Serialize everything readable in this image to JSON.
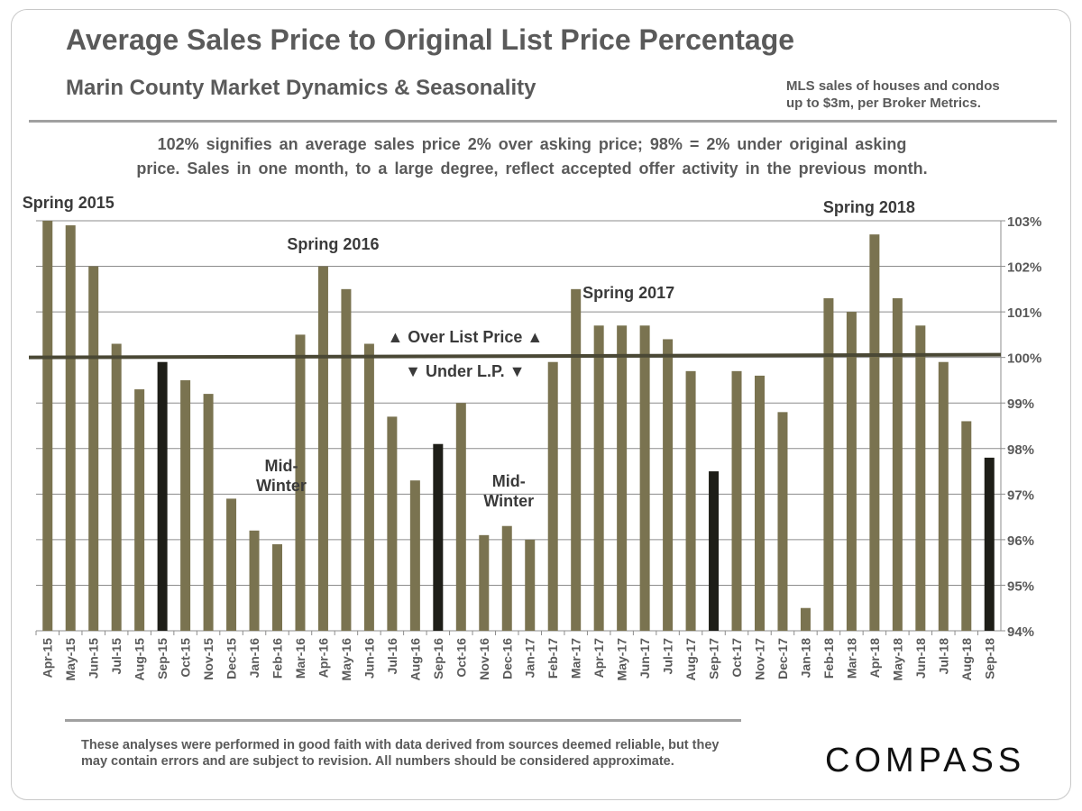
{
  "header": {
    "title": "Average Sales Price to Original List Price Percentage",
    "subtitle": "Marin County Market Dynamics & Seasonality",
    "source_line1": "MLS sales of houses and condos",
    "source_line2": "up to $3m, per Broker Metrics."
  },
  "note": {
    "line1": "102% signifies an average sales price 2% over asking price; 98% = 2% under original asking",
    "line2": "price. Sales in one month, to a large degree, reflect accepted offer activity in the previous month."
  },
  "footer": {
    "disclaimer": "These analyses were performed in good faith with data derived from sources deemed reliable, but they may contain errors and are subject to revision. All numbers should be considered approximate.",
    "logo_text": "COMPASS"
  },
  "colors": {
    "bar": "#7a7350",
    "bar_highlight": "#1e1e18",
    "baseline": "#4a4835",
    "grid": "#8c8c8c",
    "text": "#5a5a5a"
  },
  "chart_data": {
    "type": "bar",
    "title": "Average Sales Price to Original List Price Percentage",
    "categories": [
      "Apr-15",
      "May-15",
      "Jun-15",
      "Jul-15",
      "Aug-15",
      "Sep-15",
      "Oct-15",
      "Nov-15",
      "Dec-15",
      "Jan-16",
      "Feb-16",
      "Mar-16",
      "Apr-16",
      "May-16",
      "Jun-16",
      "Jul-16",
      "Aug-16",
      "Sep-16",
      "Oct-16",
      "Nov-16",
      "Dec-16",
      "Jan-17",
      "Feb-17",
      "Mar-17",
      "Apr-17",
      "May-17",
      "Jun-17",
      "Jul-17",
      "Aug-17",
      "Sep-17",
      "Oct-17",
      "Nov-17",
      "Dec-17",
      "Jan-18",
      "Feb-18",
      "Mar-18",
      "Apr-18",
      "May-18",
      "Jun-18",
      "Jul-18",
      "Aug-18",
      "Sep-18"
    ],
    "values": [
      103.0,
      102.9,
      102.0,
      100.3,
      99.3,
      99.9,
      99.5,
      99.2,
      96.9,
      96.2,
      95.9,
      100.5,
      102.0,
      101.5,
      100.3,
      98.7,
      97.3,
      98.1,
      99.0,
      96.1,
      96.3,
      96.0,
      99.9,
      101.5,
      100.7,
      100.7,
      100.7,
      100.4,
      99.7,
      97.5,
      99.7,
      99.6,
      98.8,
      94.5,
      101.3,
      101.0,
      102.7,
      101.3,
      100.7,
      99.9,
      98.6,
      97.8
    ],
    "highlighted": [
      "Sep-15",
      "Sep-16",
      "Sep-17",
      "Sep-18"
    ],
    "ylim": [
      94,
      103
    ],
    "yticks": [
      "94%",
      "95%",
      "96%",
      "97%",
      "98%",
      "99%",
      "100%",
      "101%",
      "102%",
      "103%"
    ],
    "xlabel": "",
    "ylabel": "",
    "grid": true,
    "reference_line": 100,
    "annotations": [
      {
        "text": "Spring 2015",
        "at": "Apr-15"
      },
      {
        "text": "Spring 2016",
        "at": "Apr-16"
      },
      {
        "text": "Spring 2017",
        "at": "Apr-17"
      },
      {
        "text": "Spring 2018",
        "at": "Apr-18"
      },
      {
        "text": "Mid-\nWinter",
        "at": "Jan-16"
      },
      {
        "text": "Mid-\nWinter",
        "at": "Dec-16"
      },
      {
        "text": "▲ Over List Price ▲",
        "at": "Sep-16"
      },
      {
        "text": "▼ Under L.P. ▼",
        "at": "Sep-16"
      }
    ]
  }
}
